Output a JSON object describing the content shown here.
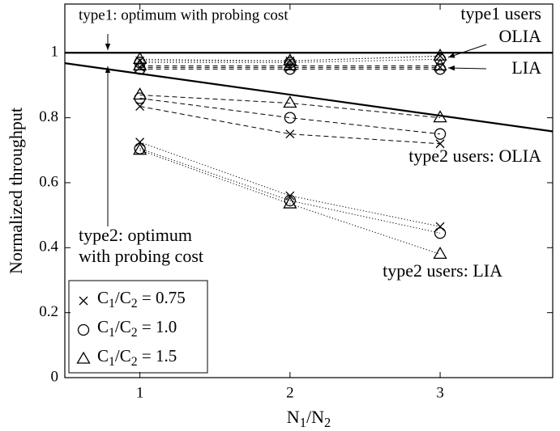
{
  "chart_data": {
    "type": "line",
    "x_label": "N1/N2",
    "y_label": "Normalized throughput",
    "x": [
      1,
      2,
      3
    ],
    "xlim": [
      0.5,
      3.75
    ],
    "ylim": [
      0,
      1.15
    ],
    "xticks": [
      1,
      2,
      3
    ],
    "yticks": [
      0,
      0.2,
      0.4,
      0.6,
      0.8,
      1
    ],
    "color": "#000000",
    "legend": [
      {
        "label": "C1/C2 = 0.75",
        "marker": "x"
      },
      {
        "label": "C1/C2 = 1.0",
        "marker": "o"
      },
      {
        "label": "C1/C2 = 1.5",
        "marker": "^"
      }
    ],
    "legend_position": "lower left",
    "reference_lines": [
      {
        "x": [
          0.5,
          3.75
        ],
        "values": [
          1,
          1
        ]
      },
      {
        "x": [
          0.5,
          3.75
        ],
        "values": [
          0.968,
          0.758
        ]
      }
    ],
    "series": [
      {
        "marker": "x",
        "style": "dotted",
        "values": [
          0.975,
          0.975,
          0.99
        ]
      },
      {
        "marker": "o",
        "style": "dotted",
        "values": [
          0.97,
          0.97,
          0.98
        ]
      },
      {
        "marker": "^",
        "style": "dotted",
        "values": [
          0.98,
          0.975,
          0.99
        ]
      },
      {
        "marker": "x",
        "style": "dashed",
        "values": [
          0.955,
          0.955,
          0.955
        ]
      },
      {
        "marker": "o",
        "style": "dashed",
        "values": [
          0.95,
          0.95,
          0.95
        ]
      },
      {
        "marker": "^",
        "style": "dashed",
        "values": [
          0.96,
          0.96,
          0.96
        ]
      },
      {
        "marker": "x",
        "style": "dashed",
        "values": [
          0.835,
          0.75,
          0.72
        ]
      },
      {
        "marker": "o",
        "style": "dashed",
        "values": [
          0.86,
          0.8,
          0.75
        ]
      },
      {
        "marker": "^",
        "style": "dashed",
        "values": [
          0.87,
          0.845,
          0.8
        ]
      },
      {
        "marker": "x",
        "style": "dotted",
        "values": [
          0.725,
          0.56,
          0.465
        ]
      },
      {
        "marker": "o",
        "style": "dotted",
        "values": [
          0.705,
          0.545,
          0.445
        ]
      },
      {
        "marker": "^",
        "style": "dotted",
        "values": [
          0.7,
          0.535,
          0.38
        ]
      }
    ],
    "annotations": [
      "type1: optimum with probing cost",
      "type1 users",
      "OLIA",
      "LIA",
      "type2 users: OLIA",
      "type2: optimum",
      "with probing cost",
      "type2 users: LIA"
    ]
  }
}
